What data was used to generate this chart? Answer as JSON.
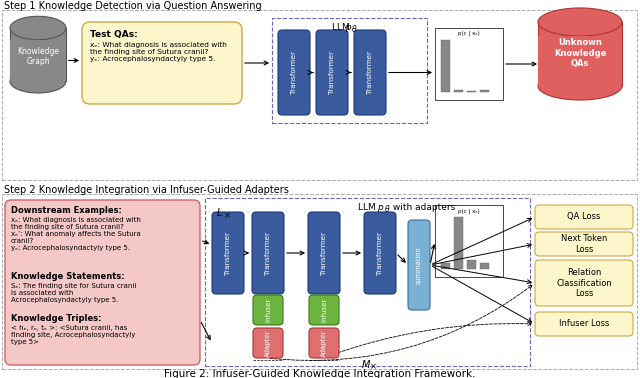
{
  "title": "Figure 2: Infuser-Guided Knowledge Integration Framework.",
  "step1_label": "Step 1 Knowledge Detection via Question Answering",
  "step2_label": "Step 2 Knowledge Integration via Infuser-Guided Adapters",
  "transformer_color": "#3a5c9e",
  "transformer_edge": "#1a3a7a",
  "infuser_color": "#6db33f",
  "infuser_edge": "#3a7a18",
  "adapter_color": "#e07070",
  "adapter_edge": "#aa3333",
  "summation_color": "#7ab0d4",
  "summation_edge": "#3a6a9a",
  "test_qa_bg": "#fdf5cc",
  "test_qa_edge": "#ccaa44",
  "downstream_bg": "#f5c8c8",
  "downstream_edge": "#cc6666",
  "loss_bg": "#fdf5cc",
  "loss_edge": "#ccaa44",
  "unknown_qa_color": "#e06060",
  "unknown_qa_edge": "#aa3333",
  "kg_color": "#888888",
  "kg_edge": "#555555",
  "dashed_box_color": "#6666bb",
  "section_border_color": "#aaaaaa",
  "bar_color": "#888888",
  "bar_values1": [
    4.8,
    0.18,
    0.12,
    0.18
  ],
  "bar_values2": [
    0.08,
    0.68,
    0.12,
    0.08
  ],
  "loss_labels": [
    "QA Loss",
    "Next Token\nLoss",
    "Relation\nClassification\nLoss",
    "Infuser Loss"
  ]
}
